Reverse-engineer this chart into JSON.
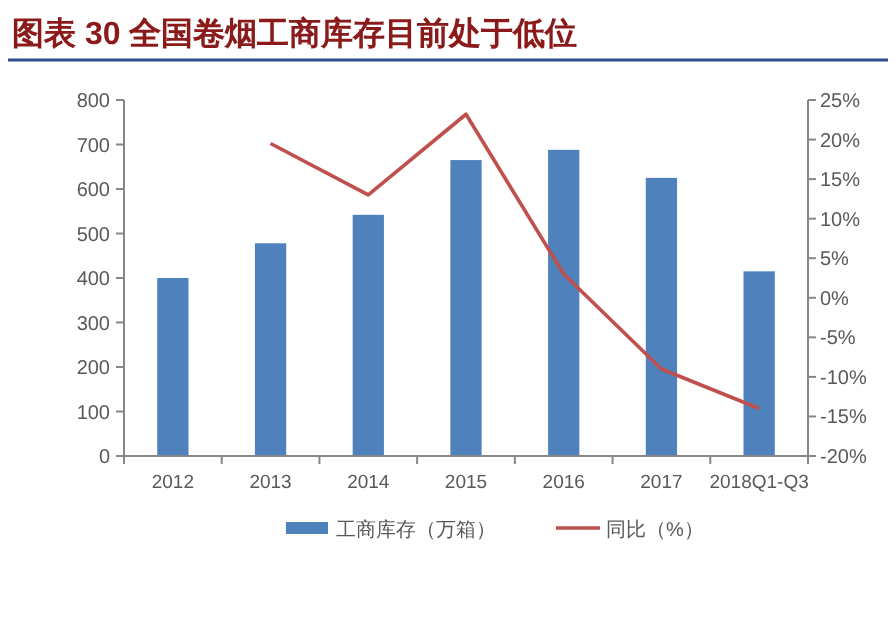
{
  "chart_data": {
    "type": "bar",
    "title": "图表 30  全国卷烟工商库存目前处于低位",
    "categories": [
      "2012",
      "2013",
      "2014",
      "2015",
      "2016",
      "2017",
      "2018Q1-Q3"
    ],
    "series": [
      {
        "name": "工商库存（万箱）",
        "color": "#4f81bd",
        "values": [
          400,
          478,
          542,
          665,
          688,
          625,
          415
        ]
      },
      {
        "name": "同比（%）",
        "type": "line",
        "axis": "y2",
        "color": "#c0504d",
        "values": [
          null,
          19.5,
          13,
          23.2,
          3,
          -9,
          -14
        ]
      }
    ],
    "ylim": [
      0,
      800
    ],
    "yticks": [
      0,
      100,
      200,
      300,
      400,
      500,
      600,
      700,
      800
    ],
    "y2lim": [
      -20,
      25
    ],
    "y2ticks": [
      {
        "value": -20,
        "label": "-20%"
      },
      {
        "value": -15,
        "label": "-15%"
      },
      {
        "value": -10,
        "label": "-10%"
      },
      {
        "value": -5,
        "label": "-5%"
      },
      {
        "value": 0,
        "label": "0%"
      },
      {
        "value": 5,
        "label": "5%"
      },
      {
        "value": 10,
        "label": "10%"
      },
      {
        "value": 15,
        "label": "15%"
      },
      {
        "value": 20,
        "label": "20%"
      },
      {
        "value": 25,
        "label": "25%"
      }
    ],
    "legend": "bottom",
    "grid": false
  }
}
